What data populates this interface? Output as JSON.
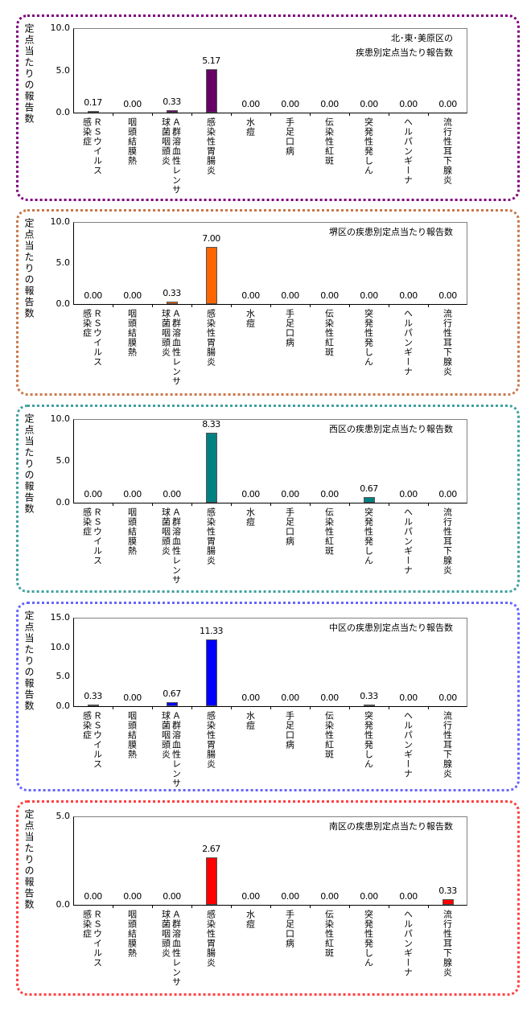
{
  "chart_data": [
    {
      "type": "bar",
      "title": "北･東･美原区の\n疾患別定点当たり報告数",
      "ylabel": "定点当たりの報告数",
      "ylim": [
        0,
        10
      ],
      "yticks": [
        "0.0",
        "5.0",
        "10.0"
      ],
      "categories": [
        "ＲＳウイルス\n感染症",
        "咽頭結膜熱",
        "Ａ群溶血性レンサ\n球菌咽頭炎",
        "感染性胃腸炎",
        "水痘",
        "手足口病",
        "伝染性紅斑",
        "突発性発しん",
        "ヘルパンギーナ",
        "流行性耳下腺炎"
      ],
      "values": [
        0.17,
        0.0,
        0.33,
        5.17,
        0.0,
        0.0,
        0.0,
        0.0,
        0.0,
        0.0
      ],
      "labels": [
        "0.17",
        "0.00",
        "0.33",
        "5.17",
        "0.00",
        "0.00",
        "0.00",
        "0.00",
        "0.00",
        "0.00"
      ],
      "bar_color": "#660066",
      "border_color": "#800080"
    },
    {
      "type": "bar",
      "title": "堺区の疾患別定点当たり報告数",
      "ylabel": "定点当たりの報告数",
      "ylim": [
        0,
        10
      ],
      "yticks": [
        "0.0",
        "5.0",
        "10.0"
      ],
      "categories": [
        "ＲＳウイルス\n感染症",
        "咽頭結膜熱",
        "Ａ群溶血性レンサ\n球菌咽頭炎",
        "感染性胃腸炎",
        "水痘",
        "手足口病",
        "伝染性紅斑",
        "突発性発しん",
        "ヘルパンギーナ",
        "流行性耳下腺炎"
      ],
      "values": [
        0.0,
        0.0,
        0.33,
        7.0,
        0.0,
        0.0,
        0.0,
        0.0,
        0.0,
        0.0
      ],
      "labels": [
        "0.00",
        "0.00",
        "0.33",
        "7.00",
        "0.00",
        "0.00",
        "0.00",
        "0.00",
        "0.00",
        "0.00"
      ],
      "bar_color": "#FF6600",
      "border_color": "#C8784A"
    },
    {
      "type": "bar",
      "title": "西区の疾患別定点当たり報告数",
      "ylabel": "定点当たりの報告数",
      "ylim": [
        0,
        10
      ],
      "yticks": [
        "0.0",
        "5.0",
        "10.0"
      ],
      "categories": [
        "ＲＳウイルス\n感染症",
        "咽頭結膜熱",
        "Ａ群溶血性レンサ\n球菌咽頭炎",
        "感染性胃腸炎",
        "水痘",
        "手足口病",
        "伝染性紅斑",
        "突発性発しん",
        "ヘルパンギーナ",
        "流行性耳下腺炎"
      ],
      "values": [
        0.0,
        0.0,
        0.0,
        8.33,
        0.0,
        0.0,
        0.0,
        0.67,
        0.0,
        0.0
      ],
      "labels": [
        "0.00",
        "0.00",
        "0.00",
        "8.33",
        "0.00",
        "0.00",
        "0.00",
        "0.67",
        "0.00",
        "0.00"
      ],
      "bar_color": "#008080",
      "border_color": "#40A0A0"
    },
    {
      "type": "bar",
      "title": "中区の疾患別定点当たり報告数",
      "ylabel": "定点当たりの報告数",
      "ylim": [
        0,
        15
      ],
      "yticks": [
        "0.0",
        "5.0",
        "10.0",
        "15.0"
      ],
      "categories": [
        "ＲＳウイルス\n感染症",
        "咽頭結膜熱",
        "Ａ群溶血性レンサ\n球菌咽頭炎",
        "感染性胃腸炎",
        "水痘",
        "手足口病",
        "伝染性紅斑",
        "突発性発しん",
        "ヘルパンギーナ",
        "流行性耳下腺炎"
      ],
      "values": [
        0.33,
        0.0,
        0.67,
        11.33,
        0.0,
        0.0,
        0.0,
        0.33,
        0.0,
        0.0
      ],
      "labels": [
        "0.33",
        "0.00",
        "0.67",
        "11.33",
        "0.00",
        "0.00",
        "0.00",
        "0.33",
        "0.00",
        "0.00"
      ],
      "bar_color": "#0000FF",
      "border_color": "#6666FF"
    },
    {
      "type": "bar",
      "title": "南区の疾患別定点当たり報告数",
      "ylabel": "定点当たりの報告数",
      "ylim": [
        0,
        5
      ],
      "yticks": [
        "0.0",
        "5.0"
      ],
      "categories": [
        "ＲＳウイルス\n感染症",
        "咽頭結膜熱",
        "Ａ群溶血性レンサ\n球菌咽頭炎",
        "感染性胃腸炎",
        "水痘",
        "手足口病",
        "伝染性紅斑",
        "突発性発しん",
        "ヘルパンギーナ",
        "流行性耳下腺炎"
      ],
      "values": [
        0.0,
        0.0,
        0.0,
        2.67,
        0.0,
        0.0,
        0.0,
        0.0,
        0.0,
        0.33
      ],
      "labels": [
        "0.00",
        "0.00",
        "0.00",
        "2.67",
        "0.00",
        "0.00",
        "0.00",
        "0.00",
        "0.00",
        "0.33"
      ],
      "bar_color": "#FF0000",
      "border_color": "#FF4040"
    }
  ]
}
